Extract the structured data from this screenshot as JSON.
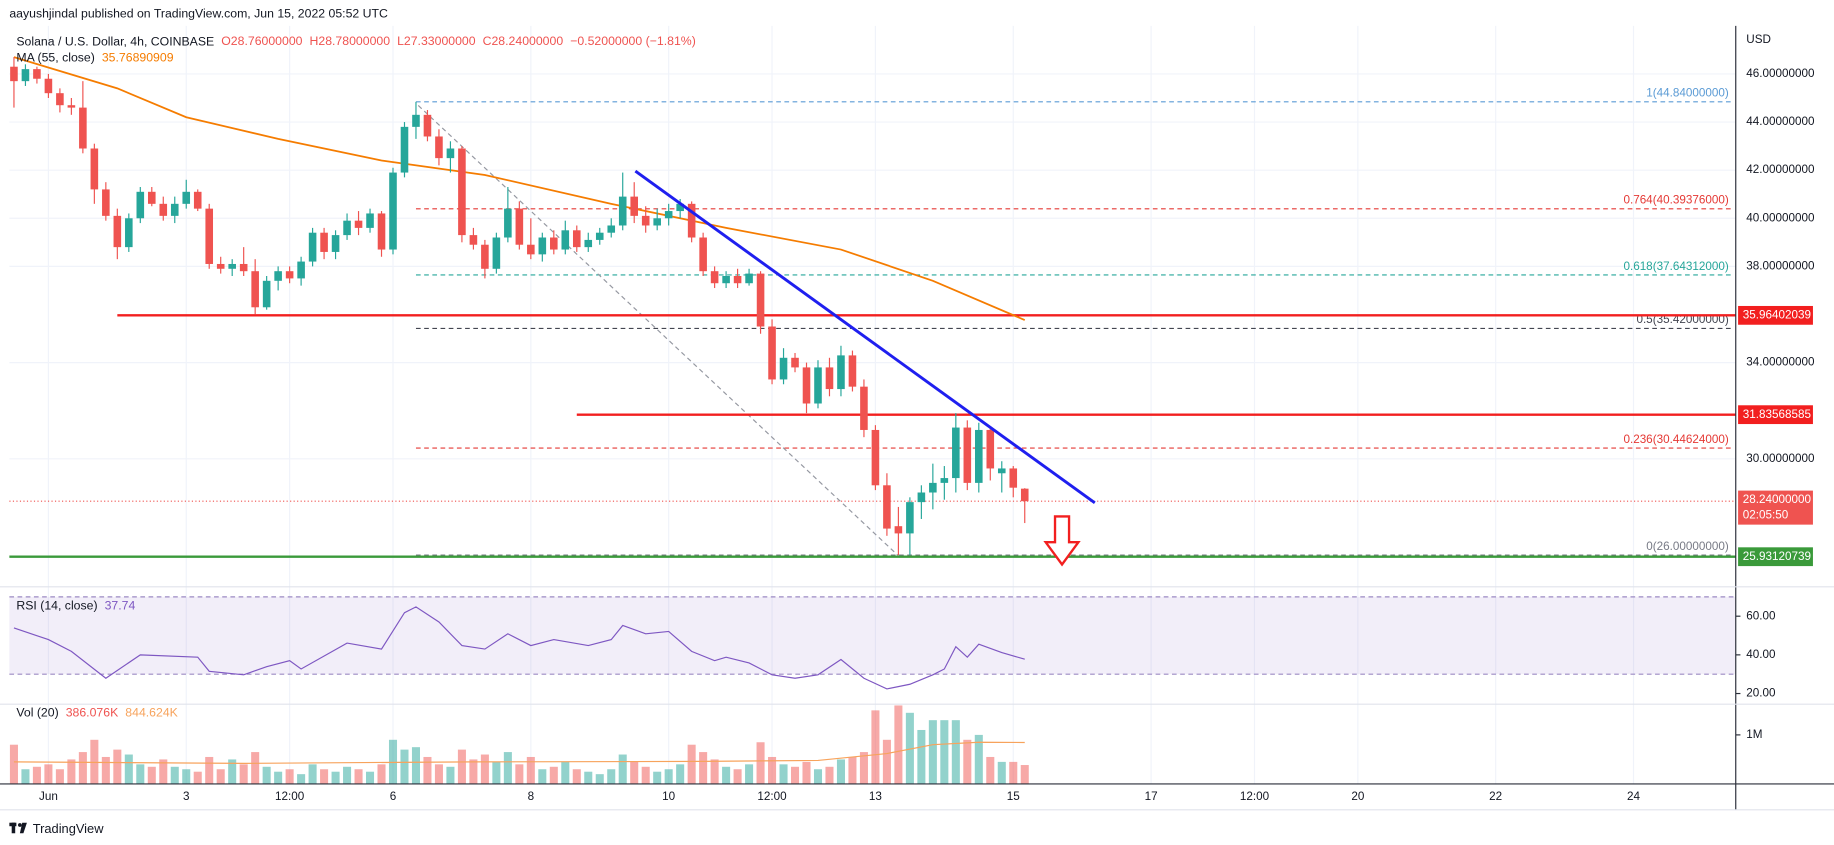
{
  "header": {
    "published": "aayushjindal published on TradingView.com, Jun 15, 2022 05:52 UTC"
  },
  "chart_data": {
    "type": "candlestick",
    "symbol": "Solana / U.S. Dollar, 4h, COINBASE",
    "ohlc_legend": [
      "O28.76000000",
      "H28.78000000",
      "L27.33000000",
      "C28.24000000",
      "−0.52000000 (−1.81%)"
    ],
    "currency": "USD",
    "up_color": "#26a69a",
    "down_color": "#ef5350",
    "xlim": [
      -0.4,
      149.9
    ],
    "ylim": [
      24.68,
      48
    ],
    "xticks": [
      {
        "value": 3,
        "label": "Jun"
      },
      {
        "value": 15,
        "label": "3"
      },
      {
        "value": 24,
        "label": "12:00"
      },
      {
        "value": 33,
        "label": "6"
      },
      {
        "value": 45,
        "label": "8"
      },
      {
        "value": 57,
        "label": "10"
      },
      {
        "value": 66,
        "label": "12:00"
      },
      {
        "value": 75,
        "label": "13"
      },
      {
        "value": 87,
        "label": "15"
      },
      {
        "value": 99,
        "label": "17"
      },
      {
        "value": 108,
        "label": "12:00"
      },
      {
        "value": 117,
        "label": "20"
      },
      {
        "value": 129,
        "label": "22"
      },
      {
        "value": 141,
        "label": "24"
      }
    ],
    "yticks": [
      {
        "value": 30,
        "label": "30.00000000"
      },
      {
        "value": 34,
        "label": "34.00000000"
      },
      {
        "value": 38,
        "label": "38.00000000"
      },
      {
        "value": 40,
        "label": "40.00000000"
      },
      {
        "value": 42,
        "label": "42.00000000"
      },
      {
        "value": 44,
        "label": "44.00000000"
      },
      {
        "value": 46,
        "label": "46.00000000"
      }
    ],
    "grid": true,
    "candles": [
      [
        46.3,
        46.7,
        44.6,
        45.7
      ],
      [
        45.7,
        46.4,
        45.5,
        46.2
      ],
      [
        46.2,
        46.3,
        45.6,
        45.8
      ],
      [
        45.8,
        46.0,
        45.0,
        45.2
      ],
      [
        45.2,
        45.4,
        44.4,
        44.7
      ],
      [
        44.7,
        45.0,
        44.3,
        44.6
      ],
      [
        44.6,
        45.7,
        42.7,
        42.9
      ],
      [
        42.9,
        43.1,
        40.6,
        41.2
      ],
      [
        41.2,
        41.5,
        39.9,
        40.1
      ],
      [
        40.1,
        40.4,
        38.3,
        38.8
      ],
      [
        38.8,
        40.2,
        38.6,
        40.0
      ],
      [
        40.0,
        41.3,
        39.8,
        41.1
      ],
      [
        41.1,
        41.3,
        40.5,
        40.6
      ],
      [
        40.6,
        40.9,
        39.9,
        40.1
      ],
      [
        40.1,
        40.9,
        39.8,
        40.6
      ],
      [
        40.6,
        41.6,
        40.4,
        41.1
      ],
      [
        41.1,
        41.2,
        40.3,
        40.4
      ],
      [
        40.4,
        40.6,
        37.9,
        38.1
      ],
      [
        38.1,
        38.4,
        37.7,
        37.9
      ],
      [
        37.9,
        38.3,
        37.6,
        38.1
      ],
      [
        38.1,
        38.8,
        37.6,
        37.8
      ],
      [
        37.8,
        38.3,
        36.0,
        36.3
      ],
      [
        36.3,
        37.6,
        36.2,
        37.4
      ],
      [
        37.4,
        38.0,
        37.0,
        37.8
      ],
      [
        37.8,
        38.0,
        37.3,
        37.5
      ],
      [
        37.5,
        38.4,
        37.2,
        38.2
      ],
      [
        38.2,
        39.6,
        38.0,
        39.4
      ],
      [
        39.4,
        39.6,
        38.3,
        38.6
      ],
      [
        38.6,
        39.5,
        38.3,
        39.3
      ],
      [
        39.3,
        40.2,
        39.1,
        39.9
      ],
      [
        39.9,
        40.3,
        39.3,
        39.6
      ],
      [
        39.6,
        40.4,
        39.4,
        40.2
      ],
      [
        40.2,
        40.3,
        38.4,
        38.7
      ],
      [
        38.7,
        42.1,
        38.5,
        41.9
      ],
      [
        41.9,
        44.0,
        41.7,
        43.8
      ],
      [
        43.8,
        44.84,
        43.3,
        44.3
      ],
      [
        44.3,
        44.5,
        43.2,
        43.4
      ],
      [
        43.4,
        43.7,
        42.2,
        42.5
      ],
      [
        42.5,
        43.2,
        41.9,
        42.9
      ],
      [
        42.9,
        43.0,
        39.0,
        39.3
      ],
      [
        39.3,
        39.6,
        38.7,
        38.9
      ],
      [
        38.9,
        39.1,
        37.5,
        37.9
      ],
      [
        37.9,
        39.4,
        37.7,
        39.2
      ],
      [
        39.2,
        41.3,
        39.0,
        40.4
      ],
      [
        40.4,
        40.7,
        38.7,
        38.9
      ],
      [
        38.9,
        40.0,
        38.3,
        38.5
      ],
      [
        38.5,
        39.4,
        38.2,
        39.2
      ],
      [
        39.2,
        39.5,
        38.5,
        38.7
      ],
      [
        38.7,
        39.9,
        38.5,
        39.5
      ],
      [
        39.5,
        39.7,
        38.6,
        38.8
      ],
      [
        38.8,
        39.4,
        38.6,
        39.1
      ],
      [
        39.1,
        39.6,
        38.9,
        39.4
      ],
      [
        39.4,
        40.0,
        39.2,
        39.7
      ],
      [
        39.7,
        41.9,
        39.5,
        40.9
      ],
      [
        40.9,
        41.5,
        39.8,
        40.1
      ],
      [
        40.1,
        40.5,
        39.4,
        39.7
      ],
      [
        39.7,
        40.4,
        39.5,
        40.0
      ],
      [
        40.0,
        40.6,
        39.7,
        40.3
      ],
      [
        40.3,
        40.8,
        40.0,
        40.6
      ],
      [
        40.6,
        40.7,
        39.0,
        39.2
      ],
      [
        39.2,
        39.4,
        37.6,
        37.8
      ],
      [
        37.8,
        38.0,
        37.1,
        37.3
      ],
      [
        37.3,
        37.8,
        37.1,
        37.6
      ],
      [
        37.6,
        37.9,
        37.1,
        37.3
      ],
      [
        37.3,
        37.9,
        37.2,
        37.7
      ],
      [
        37.7,
        37.8,
        35.2,
        35.5
      ],
      [
        35.5,
        35.8,
        33.1,
        33.3
      ],
      [
        33.3,
        34.6,
        33.1,
        34.2
      ],
      [
        34.2,
        34.4,
        33.6,
        33.8
      ],
      [
        33.8,
        34.0,
        31.9,
        32.3
      ],
      [
        32.3,
        34.1,
        32.1,
        33.8
      ],
      [
        33.8,
        34.2,
        32.6,
        32.9
      ],
      [
        32.9,
        34.7,
        32.6,
        34.3
      ],
      [
        34.3,
        34.5,
        32.8,
        33.0
      ],
      [
        33.0,
        33.3,
        30.9,
        31.2
      ],
      [
        31.2,
        31.4,
        28.7,
        28.9
      ],
      [
        28.9,
        29.4,
        26.8,
        27.1
      ],
      [
        27.2,
        28.0,
        26.0,
        26.9
      ],
      [
        26.9,
        28.4,
        26.0,
        28.2
      ],
      [
        28.2,
        28.9,
        27.5,
        28.6
      ],
      [
        28.6,
        29.8,
        27.9,
        29.0
      ],
      [
        29.0,
        29.7,
        28.3,
        29.2
      ],
      [
        29.2,
        31.9,
        28.6,
        31.3
      ],
      [
        31.3,
        31.6,
        28.7,
        29.0
      ],
      [
        29.0,
        31.5,
        28.6,
        31.2
      ],
      [
        31.2,
        31.3,
        29.1,
        29.6
      ],
      [
        29.4,
        29.9,
        28.6,
        29.6
      ],
      [
        29.6,
        29.7,
        28.4,
        28.8
      ],
      [
        28.76,
        28.78,
        27.33,
        28.24
      ]
    ],
    "ma": {
      "name": "MA (55, close)",
      "color": "#f57c00",
      "x": [
        0,
        9,
        15,
        23,
        32,
        41,
        52,
        62,
        72,
        80,
        88
      ],
      "values": [
        46.7,
        45.4,
        44.2,
        43.3,
        42.4,
        41.8,
        40.6,
        39.6,
        38.7,
        37.4,
        35.76890909
      ]
    },
    "current": {
      "value": 28.24,
      "label": "28.24000000",
      "countdown": "02:05:50",
      "color": "#ef5350"
    },
    "levels": [
      {
        "value": 35.96402039,
        "color": "#f21f1f",
        "x_start": 9
      },
      {
        "value": 31.83568585,
        "color": "#f21f1f",
        "x_start": 49
      },
      {
        "value": 25.93120739,
        "color": "#3a9a3a",
        "x_start": -0.4
      }
    ],
    "fib": {
      "x_start": 35,
      "levels": [
        {
          "ratio": 1,
          "value": 44.84,
          "label": "44.84000000",
          "color": "#5b9bd5"
        },
        {
          "ratio": 0.764,
          "value": 40.39376,
          "label": "40.39376000",
          "color": "#e53935"
        },
        {
          "ratio": 0.618,
          "value": 37.64312,
          "label": "37.64312000",
          "color": "#26a69a"
        },
        {
          "ratio": 0.5,
          "value": 35.42,
          "label": "35.42000000",
          "color": "#434651"
        },
        {
          "ratio": 0.236,
          "value": 30.44624,
          "label": "30.44624000",
          "color": "#e53935"
        },
        {
          "ratio": 0,
          "value": 26.0,
          "label": "26.00000000",
          "color": "#787b86"
        }
      ]
    },
    "fib_diagonal": {
      "x": [
        35.2,
        77.2
      ],
      "values": [
        44.69,
        25.88
      ],
      "color": "#9598a1"
    },
    "trendline": {
      "x": [
        54.1,
        94.1
      ],
      "values": [
        41.96,
        28.17
      ],
      "color": "#1f1fef"
    },
    "rsi": {
      "name": "RSI (14, close)",
      "color": "#7e57c2",
      "ylim": [
        14.5,
        75.2
      ],
      "band": [
        30,
        70
      ],
      "yticks": [
        {
          "value": 20,
          "label": "20.00"
        },
        {
          "value": 40,
          "label": "40.00"
        },
        {
          "value": 60,
          "label": "60.00"
        }
      ],
      "x": [
        0,
        3,
        5,
        8,
        11,
        16,
        17,
        20,
        22,
        24,
        25,
        29,
        32,
        34,
        35,
        37,
        39,
        41,
        43,
        45,
        47,
        50,
        52,
        53,
        55,
        57,
        59,
        61,
        62,
        64,
        66,
        68,
        70,
        72,
        74,
        76,
        78,
        80,
        81,
        82,
        83,
        84,
        86,
        88
      ],
      "values": [
        53.9,
        47.9,
        41.8,
        27.9,
        40,
        38.8,
        31.5,
        29.7,
        33.9,
        37,
        32.7,
        46.1,
        43,
        61.8,
        64.8,
        57,
        44.8,
        43,
        50.9,
        44.8,
        47.9,
        44.8,
        47.9,
        55.2,
        50.9,
        52.1,
        41.8,
        37,
        38.8,
        35.8,
        29.7,
        27.9,
        29.7,
        37.6,
        27.9,
        22.4,
        24.8,
        29.7,
        32.7,
        44.2,
        38.8,
        45.5,
        41.2,
        37.74
      ]
    },
    "volume": {
      "name": "Vol (20)",
      "last_label": "386.076K",
      "ma_last_label": "844.624K",
      "ylim": [
        0,
        1650000
      ],
      "yticks": [
        {
          "value": 1000000,
          "label": "1M"
        }
      ],
      "values": [
        800000,
        300000,
        350000,
        400000,
        300000,
        500000,
        650000,
        900000,
        550000,
        700000,
        600000,
        400000,
        350000,
        500000,
        350000,
        300000,
        250000,
        550000,
        300000,
        500000,
        400000,
        650000,
        350000,
        250000,
        300000,
        200000,
        400000,
        300000,
        250000,
        350000,
        300000,
        250000,
        400000,
        900000,
        700000,
        750000,
        550000,
        400000,
        350000,
        700000,
        500000,
        600000,
        450000,
        650000,
        400000,
        550000,
        300000,
        350000,
        450000,
        300000,
        250000,
        200000,
        300000,
        600000,
        450000,
        350000,
        250000,
        300000,
        400000,
        800000,
        650000,
        500000,
        350000,
        300000,
        400000,
        850000,
        550000,
        400000,
        350000,
        450000,
        300000,
        350000,
        500000,
        550000,
        650000,
        1500000,
        900000,
        1600000,
        1450000,
        1100000,
        1300000,
        1300000,
        1300000,
        900000,
        1000000,
        550000,
        450000,
        450000,
        386076
      ],
      "ma": {
        "color": "#f7a35c",
        "x": [
          0,
          20,
          40,
          60,
          70,
          76,
          80,
          84,
          88
        ],
        "values": [
          450000,
          420000,
          450000,
          460000,
          480000,
          620000,
          800000,
          850000,
          844624
        ]
      }
    }
  },
  "footer": {
    "brand": "TradingView"
  }
}
